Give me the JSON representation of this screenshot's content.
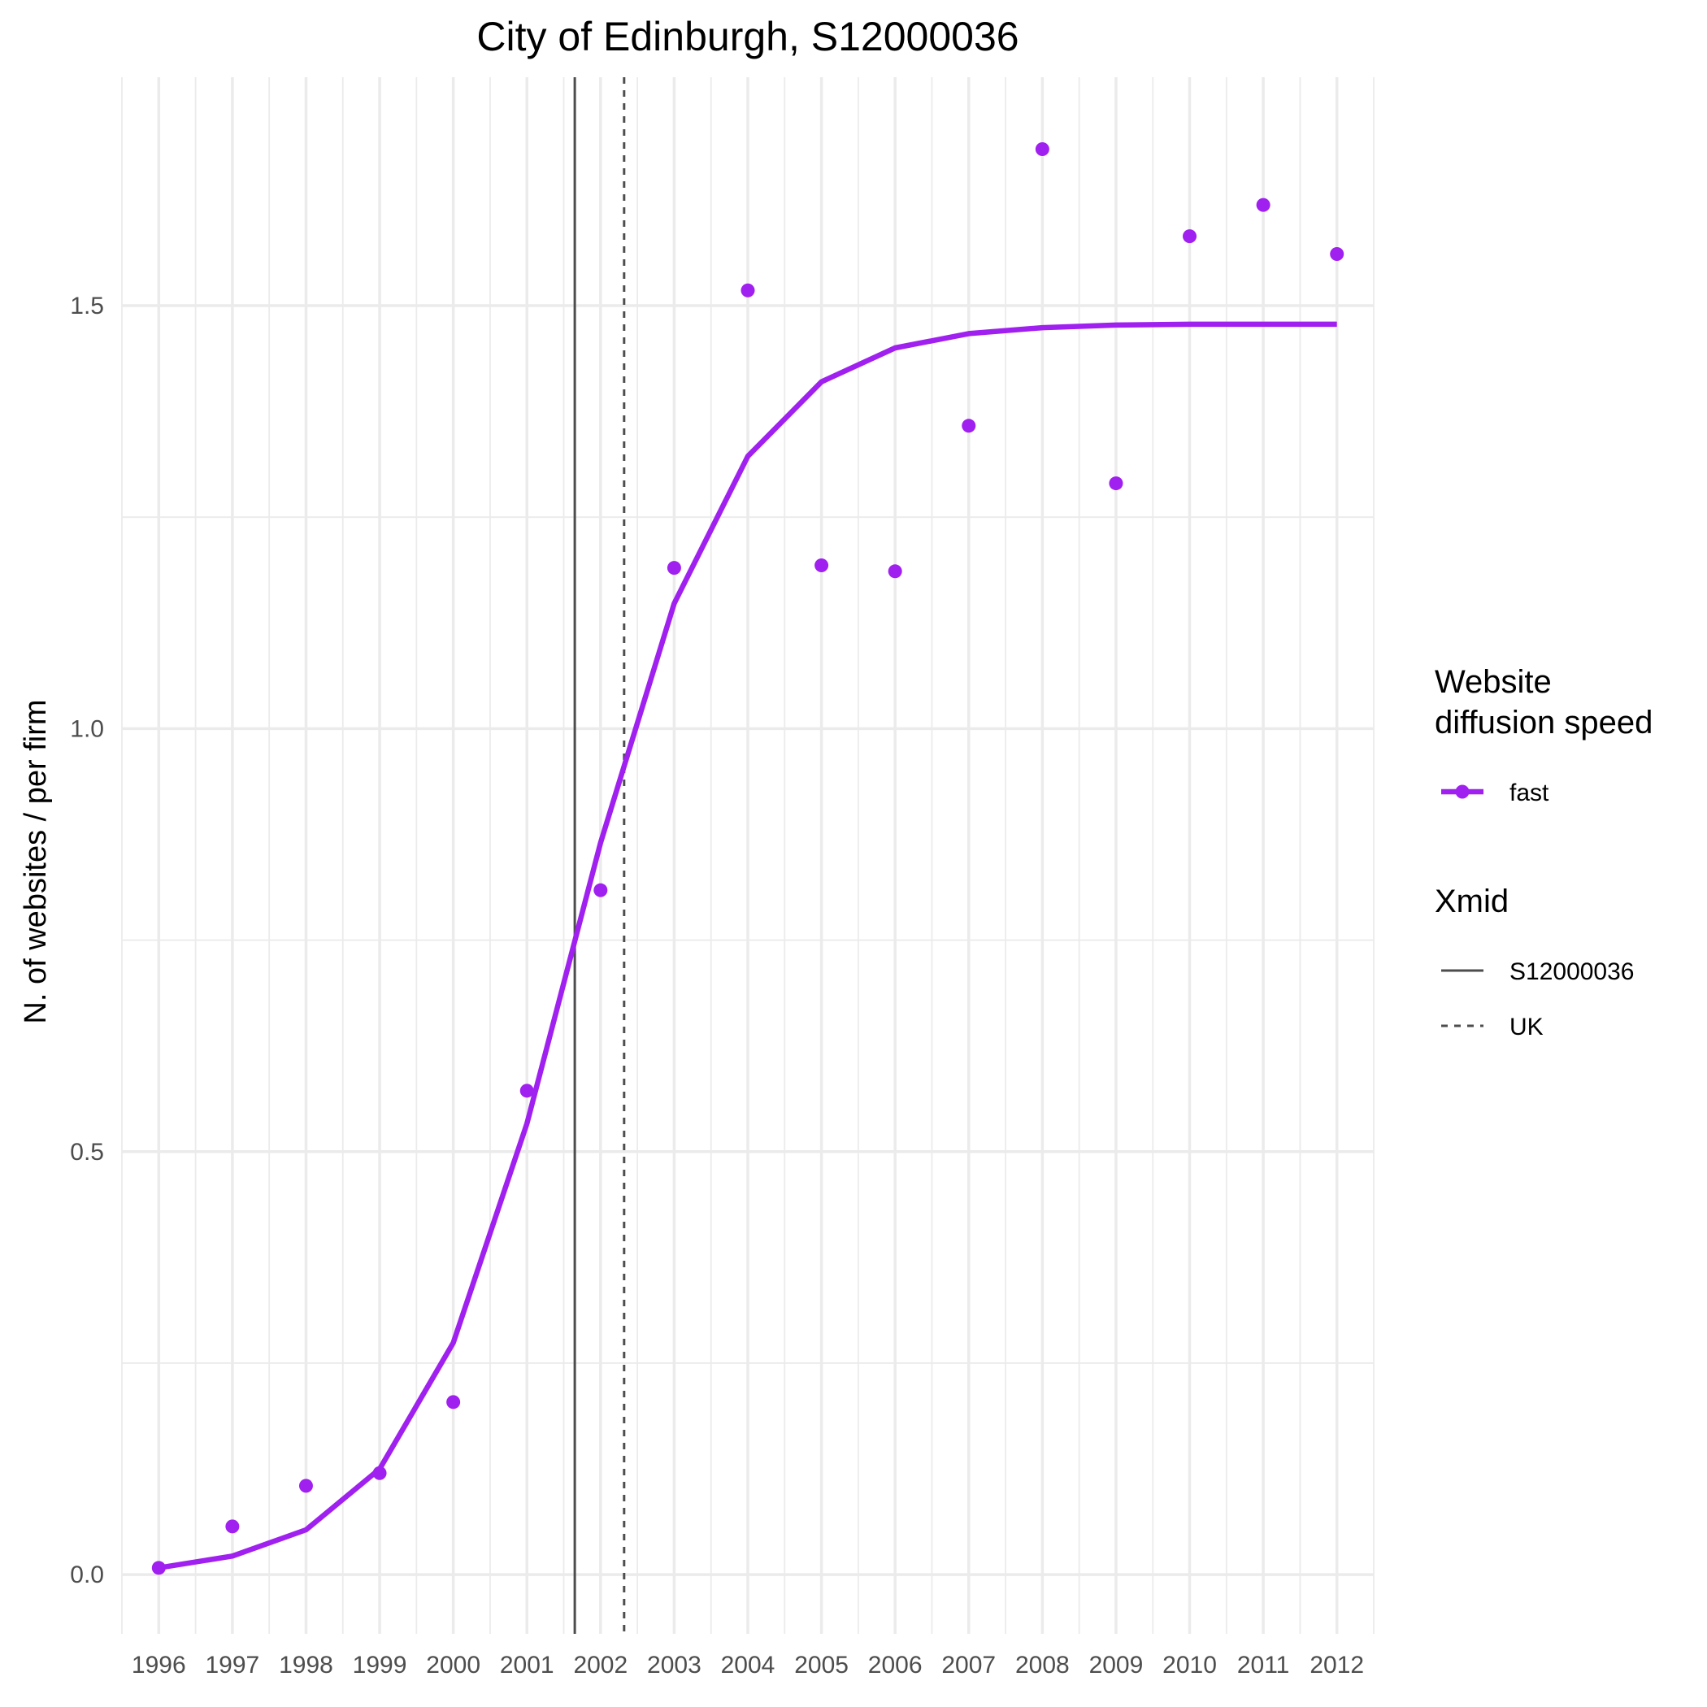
{
  "chart_data": {
    "type": "line",
    "title": "City of Edinburgh, S12000036",
    "xlabel": "",
    "ylabel": "N. of websites / per firm",
    "x": [
      1996,
      1997,
      1998,
      1999,
      2000,
      2001,
      2002,
      2003,
      2004,
      2005,
      2006,
      2007,
      2008,
      2009,
      2010,
      2011,
      2012
    ],
    "x_tick_labels": [
      "1996",
      "1997",
      "1998",
      "1999",
      "2000",
      "2001",
      "2002",
      "2003",
      "2004",
      "2005",
      "2006",
      "2007",
      "2008",
      "2009",
      "2010",
      "2011",
      "2012"
    ],
    "xlim": [
      1995.5,
      2012.5
    ],
    "ylim": [
      -0.07,
      1.77
    ],
    "y_ticks": [
      0.0,
      0.5,
      1.0,
      1.5
    ],
    "y_tick_labels": [
      "0.0",
      "0.5",
      "1.0",
      "1.5"
    ],
    "grid": true,
    "series": [
      {
        "name": "fast",
        "color": "#a020f0",
        "points": [
          0.008,
          0.057,
          0.105,
          0.12,
          0.204,
          0.572,
          0.809,
          1.19,
          1.518,
          1.193,
          1.186,
          1.358,
          1.685,
          1.29,
          1.582,
          1.619,
          1.561
        ],
        "fitted": [
          0.008,
          0.022,
          0.053,
          0.125,
          0.274,
          0.533,
          0.865,
          1.148,
          1.322,
          1.41,
          1.45,
          1.467,
          1.474,
          1.477,
          1.478,
          1.478,
          1.478
        ]
      }
    ],
    "vlines": [
      {
        "name": "S12000036",
        "x": 2001.65,
        "linetype": "solid",
        "color": "#4d4d4d"
      },
      {
        "name": "UK",
        "x": 2002.32,
        "linetype": "dashed",
        "color": "#4d4d4d"
      }
    ],
    "legend_position": "right",
    "legends": [
      {
        "title_lines": [
          "Website",
          "diffusion speed"
        ],
        "entries": [
          {
            "label": "fast",
            "kind": "line-point",
            "color": "#a020f0"
          }
        ]
      },
      {
        "title_lines": [
          "Xmid"
        ],
        "entries": [
          {
            "label": "S12000036",
            "kind": "solid",
            "color": "#4d4d4d"
          },
          {
            "label": "UK",
            "kind": "dashed",
            "color": "#4d4d4d"
          }
        ]
      }
    ]
  }
}
